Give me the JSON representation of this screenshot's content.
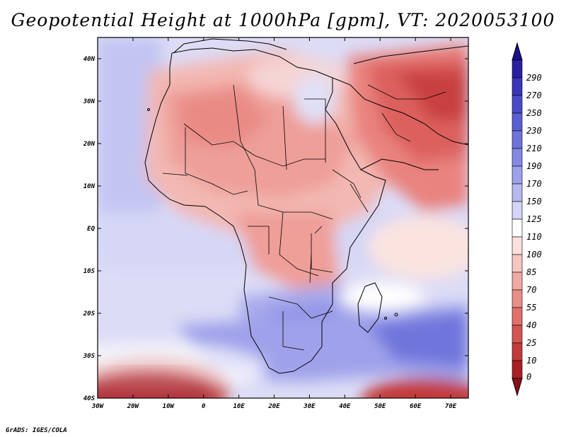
{
  "title": "Geopotential Height at 1000hPa [gpm], VT: 2020053100",
  "credit": "GrADS: IGES/COLA",
  "map": {
    "lon_range": [
      -30,
      75
    ],
    "lat_range": [
      -40,
      45
    ],
    "lat_ticks": [
      {
        "value": 40,
        "label": "40N"
      },
      {
        "value": 30,
        "label": "30N"
      },
      {
        "value": 20,
        "label": "20N"
      },
      {
        "value": 10,
        "label": "10N"
      },
      {
        "value": 0,
        "label": "EQ"
      },
      {
        "value": -10,
        "label": "10S"
      },
      {
        "value": -20,
        "label": "20S"
      },
      {
        "value": -30,
        "label": "30S"
      },
      {
        "value": -40,
        "label": "40S"
      }
    ],
    "lon_ticks": [
      {
        "value": -30,
        "label": "30W"
      },
      {
        "value": -20,
        "label": "20W"
      },
      {
        "value": -10,
        "label": "10W"
      },
      {
        "value": 0,
        "label": "0"
      },
      {
        "value": 10,
        "label": "10E"
      },
      {
        "value": 20,
        "label": "20E"
      },
      {
        "value": 30,
        "label": "30E"
      },
      {
        "value": 40,
        "label": "40E"
      },
      {
        "value": 50,
        "label": "50E"
      },
      {
        "value": 60,
        "label": "60E"
      },
      {
        "value": 70,
        "label": "70E"
      }
    ]
  },
  "colorbar": {
    "levels": [
      {
        "label": "290",
        "color": "#2a1fa0"
      },
      {
        "label": "270",
        "color": "#3a34b8"
      },
      {
        "label": "250",
        "color": "#4a4ac8"
      },
      {
        "label": "230",
        "color": "#5b5fd4"
      },
      {
        "label": "210",
        "color": "#6f74dc"
      },
      {
        "label": "190",
        "color": "#8589e4"
      },
      {
        "label": "170",
        "color": "#9da0ea"
      },
      {
        "label": "150",
        "color": "#b6b8f0"
      },
      {
        "label": "125",
        "color": "#d3d4f6"
      },
      {
        "label": "110",
        "color": "#ffffff"
      },
      {
        "label": "100",
        "color": "#fbe0dc"
      },
      {
        "label": "85",
        "color": "#f6c6c0"
      },
      {
        "label": "70",
        "color": "#f0aaa4"
      },
      {
        "label": "55",
        "color": "#e98e88"
      },
      {
        "label": "40",
        "color": "#e0706c"
      },
      {
        "label": "25",
        "color": "#d45552"
      },
      {
        "label": "10",
        "color": "#c23a3a"
      },
      {
        "label": "0",
        "color": "#a81f26"
      }
    ]
  }
}
